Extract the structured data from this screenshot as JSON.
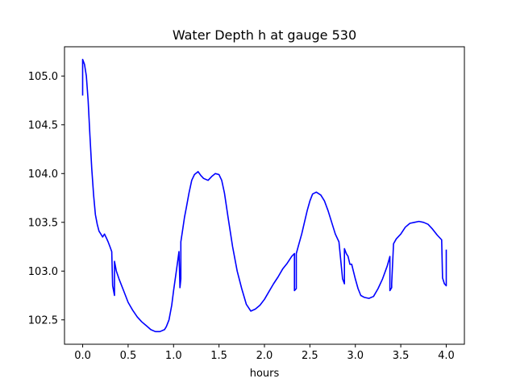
{
  "chart_data": {
    "type": "line",
    "title": "Water Depth h at gauge 530",
    "xlabel": "hours",
    "ylabel": "",
    "xlim": [
      -0.2,
      4.2
    ],
    "ylim": [
      102.25,
      105.3
    ],
    "xticks": [
      0.0,
      0.5,
      1.0,
      1.5,
      2.0,
      2.5,
      3.0,
      3.5,
      4.0
    ],
    "xtick_labels": [
      "0.0",
      "0.5",
      "1.0",
      "1.5",
      "2.0",
      "2.5",
      "3.0",
      "3.5",
      "4.0"
    ],
    "yticks": [
      102.5,
      103.0,
      103.5,
      104.0,
      104.5,
      105.0
    ],
    "ytick_labels": [
      "102.5",
      "103.0",
      "103.5",
      "104.0",
      "104.5",
      "105.0"
    ],
    "grid": false,
    "series": [
      {
        "color": "#0000ff",
        "x": [
          0.0,
          0.0,
          0.02,
          0.04,
          0.06,
          0.08,
          0.1,
          0.12,
          0.14,
          0.16,
          0.18,
          0.2,
          0.22,
          0.24,
          0.26,
          0.28,
          0.3,
          0.32,
          0.33,
          0.33,
          0.35,
          0.35,
          0.37,
          0.4,
          0.45,
          0.5,
          0.55,
          0.6,
          0.65,
          0.7,
          0.75,
          0.8,
          0.85,
          0.9,
          0.92,
          0.95,
          0.98,
          1.0,
          1.03,
          1.06,
          1.07,
          1.08,
          1.08,
          1.1,
          1.12,
          1.14,
          1.17,
          1.2,
          1.23,
          1.27,
          1.3,
          1.33,
          1.38,
          1.42,
          1.46,
          1.5,
          1.53,
          1.56,
          1.6,
          1.65,
          1.7,
          1.75,
          1.8,
          1.85,
          1.9,
          1.95,
          2.0,
          2.05,
          2.1,
          2.15,
          2.2,
          2.25,
          2.3,
          2.33,
          2.33,
          2.35,
          2.35,
          2.38,
          2.41,
          2.44,
          2.47,
          2.5,
          2.53,
          2.57,
          2.62,
          2.66,
          2.7,
          2.74,
          2.78,
          2.82,
          2.86,
          2.86,
          2.88,
          2.88,
          2.9,
          2.92,
          2.94,
          2.96,
          3.0,
          3.03,
          3.06,
          3.1,
          3.15,
          3.2,
          3.25,
          3.3,
          3.35,
          3.38,
          3.38,
          3.4,
          3.4,
          3.42,
          3.45,
          3.5,
          3.55,
          3.6,
          3.65,
          3.7,
          3.75,
          3.8,
          3.85,
          3.9,
          3.95,
          3.96,
          3.98,
          4.0,
          4.0
        ],
        "y": [
          104.8,
          105.17,
          105.12,
          105.0,
          104.75,
          104.38,
          104.05,
          103.78,
          103.58,
          103.48,
          103.41,
          103.38,
          103.35,
          103.38,
          103.34,
          103.3,
          103.25,
          103.2,
          102.85,
          102.85,
          102.75,
          103.1,
          103.0,
          102.92,
          102.8,
          102.68,
          102.6,
          102.53,
          102.48,
          102.44,
          102.4,
          102.38,
          102.38,
          102.4,
          102.43,
          102.5,
          102.65,
          102.8,
          103.0,
          103.2,
          102.83,
          102.92,
          103.3,
          103.42,
          103.55,
          103.65,
          103.8,
          103.93,
          103.99,
          104.02,
          103.98,
          103.95,
          103.93,
          103.97,
          104.0,
          103.99,
          103.93,
          103.8,
          103.55,
          103.25,
          103.0,
          102.82,
          102.66,
          102.59,
          102.61,
          102.65,
          102.71,
          102.79,
          102.87,
          102.94,
          103.02,
          103.08,
          103.15,
          103.18,
          102.8,
          102.82,
          103.18,
          103.28,
          103.38,
          103.5,
          103.62,
          103.72,
          103.79,
          103.81,
          103.78,
          103.72,
          103.62,
          103.5,
          103.38,
          103.3,
          102.92,
          102.92,
          102.87,
          103.23,
          103.18,
          103.15,
          103.07,
          103.07,
          102.92,
          102.82,
          102.75,
          102.73,
          102.72,
          102.74,
          102.82,
          102.92,
          103.05,
          103.15,
          102.8,
          102.83,
          102.87,
          103.28,
          103.33,
          103.38,
          103.45,
          103.49,
          103.5,
          103.51,
          103.5,
          103.48,
          103.43,
          103.37,
          103.32,
          102.93,
          102.87,
          102.85,
          103.22
        ]
      }
    ]
  }
}
